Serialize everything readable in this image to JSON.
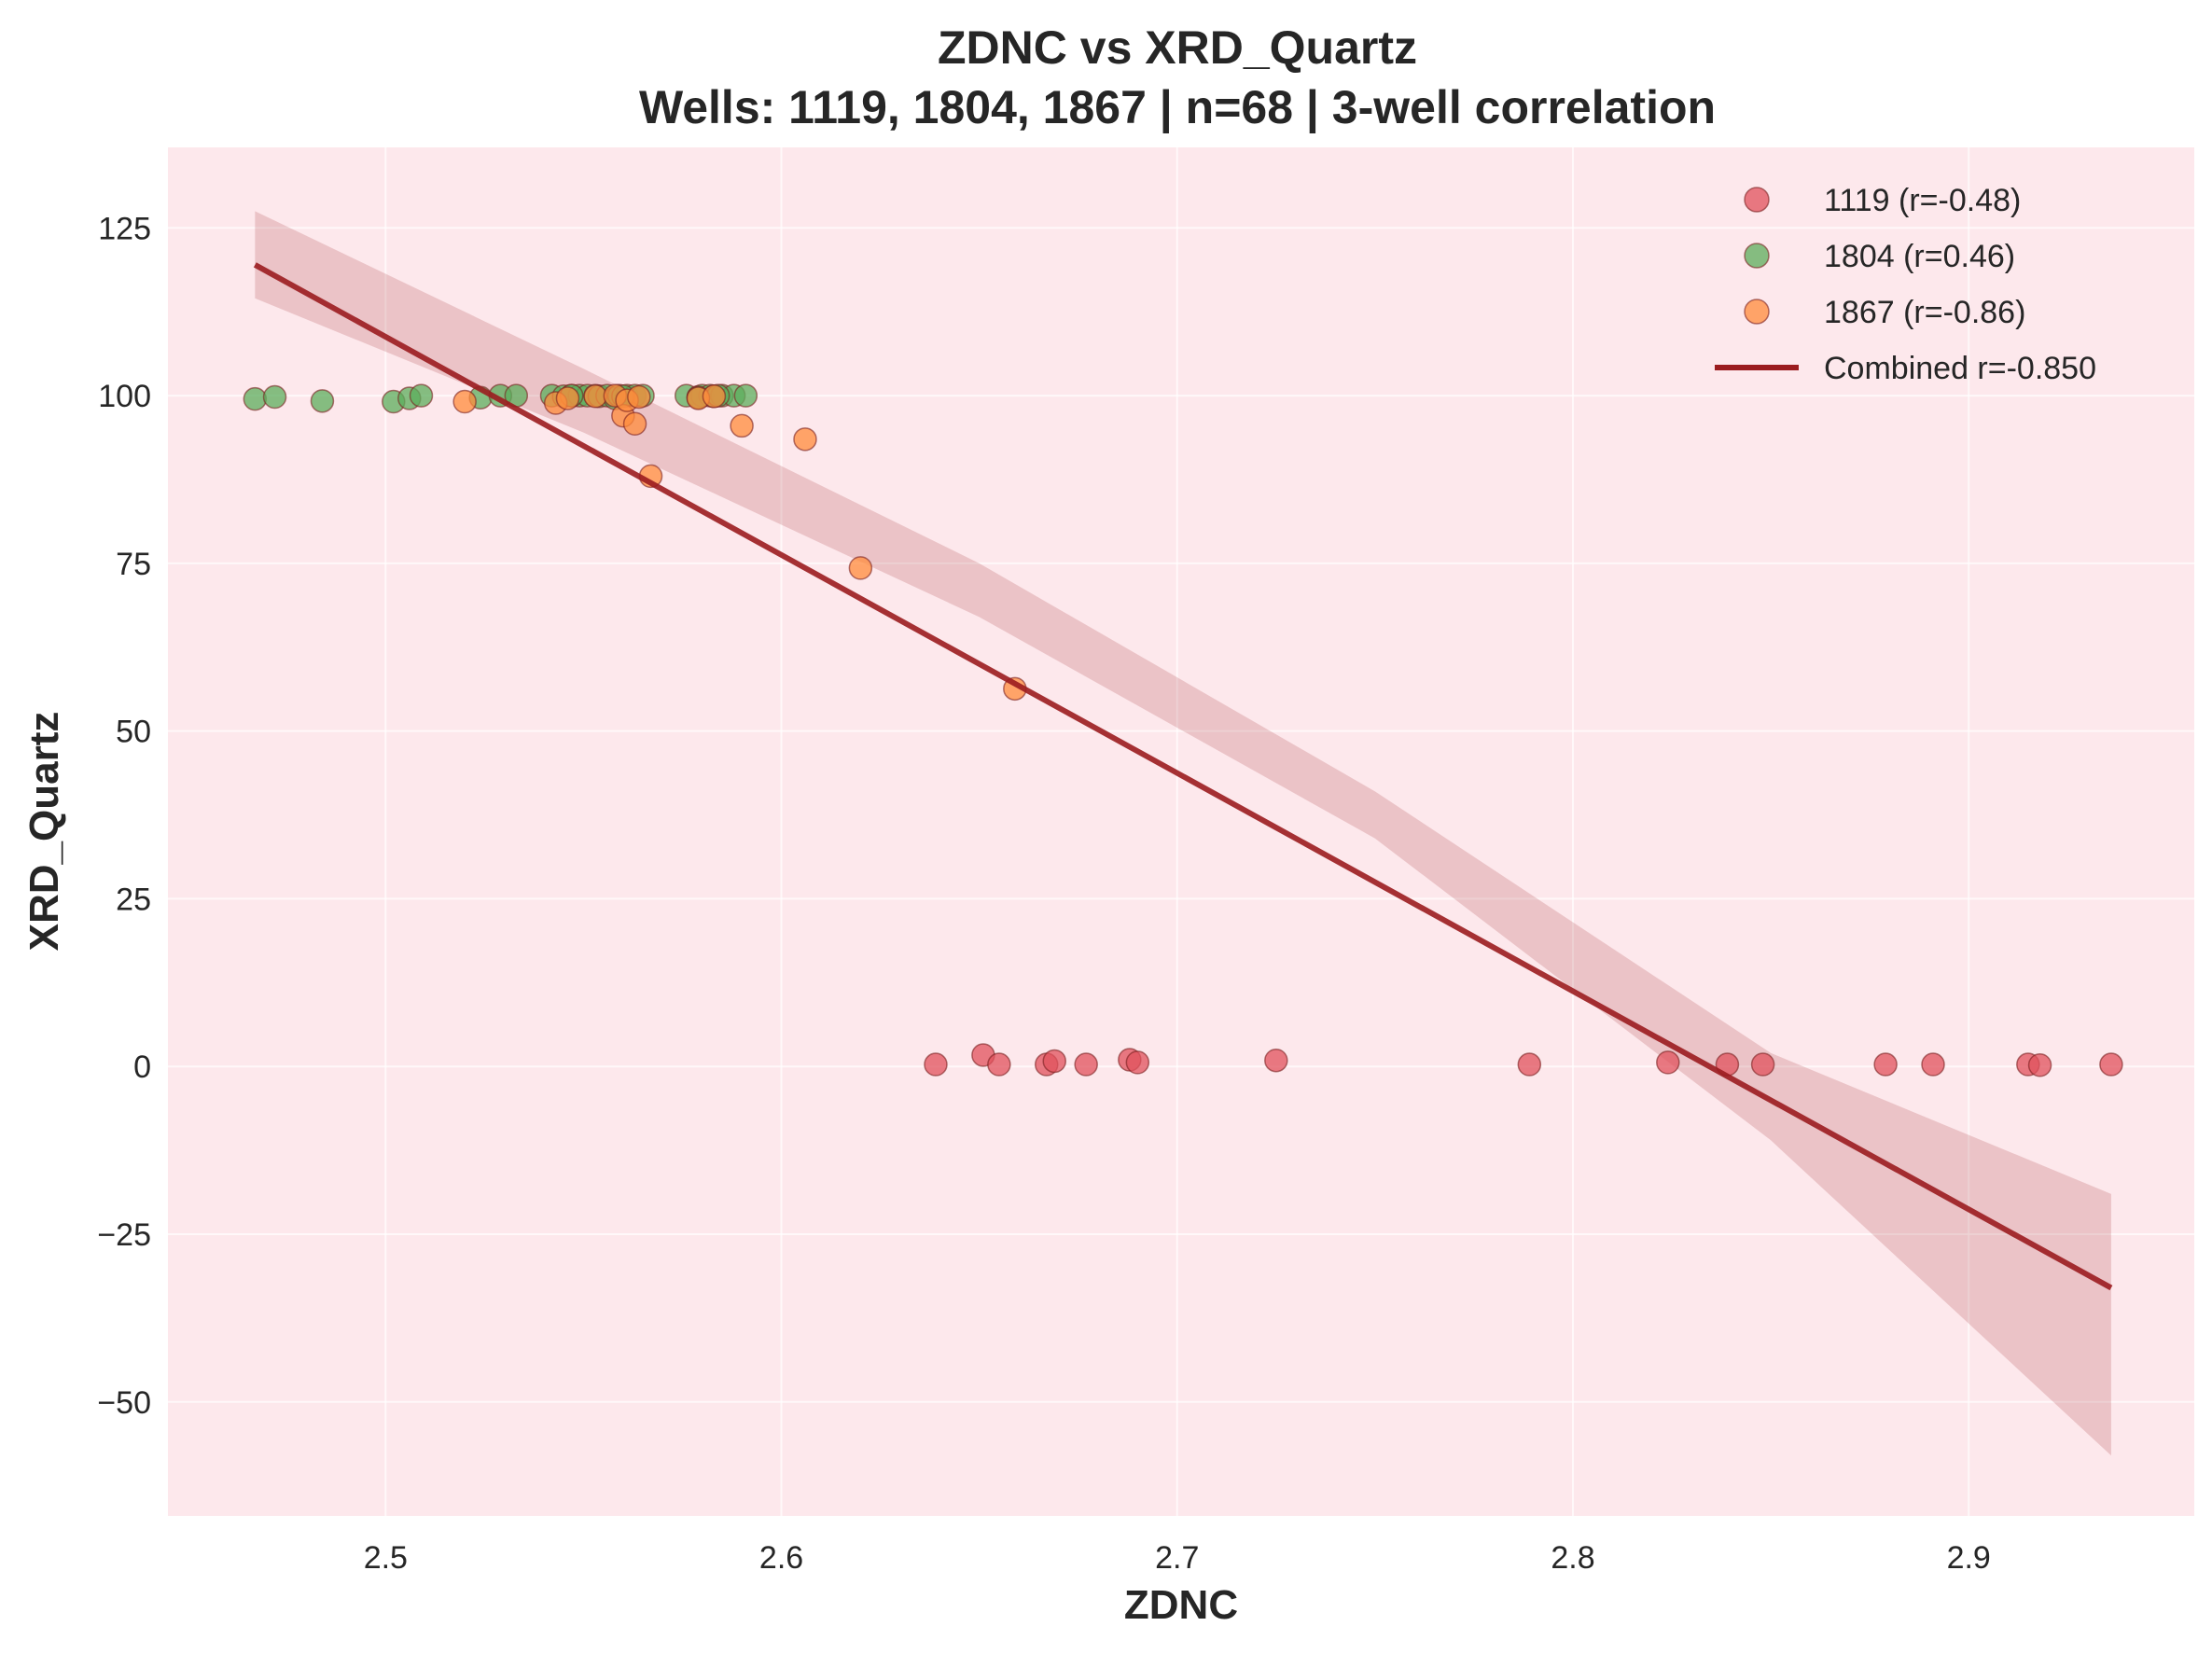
{
  "chart_data": {
    "type": "scatter",
    "title": "ZDNC vs XRD_Quartz",
    "subtitle": "Wells: 1119, 1804, 1867 | n=68 | 3-well correlation",
    "xlabel": "ZDNC",
    "ylabel": "XRD_Quartz",
    "xlim": [
      2.445,
      2.957
    ],
    "ylim": [
      -67,
      137
    ],
    "x_ticks": [
      2.5,
      2.6,
      2.7,
      2.8,
      2.9
    ],
    "x_tick_labels": [
      "2.5",
      "2.6",
      "2.7",
      "2.8",
      "2.9"
    ],
    "y_ticks": [
      -50,
      -25,
      0,
      25,
      50,
      75,
      100,
      125
    ],
    "y_tick_labels": [
      "−50",
      "−25",
      "0",
      "25",
      "50",
      "75",
      "100",
      "125"
    ],
    "grid": true,
    "background": "#fde8ec",
    "legend_position": "top-right",
    "series": [
      {
        "name": "1119 (r=-0.48)",
        "color": "#e0515c",
        "points": [
          [
            2.639,
            0.3
          ],
          [
            2.651,
            1.7
          ],
          [
            2.655,
            0.3
          ],
          [
            2.667,
            0.3
          ],
          [
            2.669,
            0.8
          ],
          [
            2.677,
            0.3
          ],
          [
            2.688,
            1.0
          ],
          [
            2.69,
            0.6
          ],
          [
            2.725,
            0.9
          ],
          [
            2.789,
            0.3
          ],
          [
            2.824,
            0.6
          ],
          [
            2.839,
            0.3
          ],
          [
            2.848,
            0.3
          ],
          [
            2.879,
            0.3
          ],
          [
            2.891,
            0.3
          ],
          [
            2.915,
            0.3
          ],
          [
            2.918,
            0.2
          ],
          [
            2.936,
            0.3
          ]
        ]
      },
      {
        "name": "1804 (r=0.46)",
        "color": "#5cad5c",
        "points": [
          [
            2.467,
            99.5
          ],
          [
            2.472,
            99.8
          ],
          [
            2.484,
            99.2
          ],
          [
            2.502,
            99.1
          ],
          [
            2.506,
            99.6
          ],
          [
            2.509,
            100.0
          ],
          [
            2.524,
            99.7
          ],
          [
            2.529,
            100.0
          ],
          [
            2.533,
            100.0
          ],
          [
            2.542,
            100.0
          ],
          [
            2.545,
            99.9
          ],
          [
            2.547,
            100.0
          ],
          [
            2.549,
            100.0
          ],
          [
            2.551,
            100.0
          ],
          [
            2.553,
            100.0
          ],
          [
            2.554,
            99.9
          ],
          [
            2.556,
            100.0
          ],
          [
            2.558,
            99.6
          ],
          [
            2.559,
            100.0
          ],
          [
            2.561,
            100.0
          ],
          [
            2.563,
            100.0
          ],
          [
            2.565,
            100.0
          ],
          [
            2.576,
            100.0
          ],
          [
            2.579,
            99.8
          ],
          [
            2.58,
            100.0
          ],
          [
            2.582,
            100.0
          ],
          [
            2.583,
            99.9
          ],
          [
            2.585,
            100.0
          ],
          [
            2.588,
            100.0
          ],
          [
            2.591,
            100.0
          ],
          [
            2.547,
            100.0
          ],
          [
            2.56,
            99.9
          ],
          [
            2.579,
            99.7
          ],
          [
            2.584,
            100.0
          ]
        ]
      },
      {
        "name": "1867 (r=-0.86)",
        "color": "#ff8c3c",
        "points": [
          [
            2.52,
            99.1
          ],
          [
            2.543,
            98.9
          ],
          [
            2.56,
            97.0
          ],
          [
            2.563,
            95.8
          ],
          [
            2.567,
            88.0
          ],
          [
            2.59,
            95.5
          ],
          [
            2.606,
            93.5
          ],
          [
            2.62,
            74.3
          ],
          [
            2.659,
            56.3
          ],
          [
            2.546,
            99.6
          ],
          [
            2.553,
            99.9
          ],
          [
            2.558,
            100.0
          ],
          [
            2.561,
            99.3
          ],
          [
            2.564,
            99.8
          ],
          [
            2.579,
            99.6
          ],
          [
            2.583,
            99.9
          ]
        ]
      }
    ],
    "regression": {
      "name": "Combined r=-0.850",
      "color": "#9b1c1f",
      "x": [
        2.467,
        2.936
      ],
      "y": [
        119.5,
        -33.0
      ],
      "ci_lower": [
        [
          2.467,
          114.5
        ],
        [
          2.55,
          94.5
        ],
        [
          2.65,
          67.0
        ],
        [
          2.75,
          34.0
        ],
        [
          2.85,
          -11.0
        ],
        [
          2.936,
          -58.0
        ]
      ],
      "ci_upper": [
        [
          2.467,
          127.5
        ],
        [
          2.55,
          104.0
        ],
        [
          2.65,
          75.0
        ],
        [
          2.75,
          41.0
        ],
        [
          2.85,
          2.0
        ],
        [
          2.936,
          -19.0
        ]
      ]
    }
  }
}
